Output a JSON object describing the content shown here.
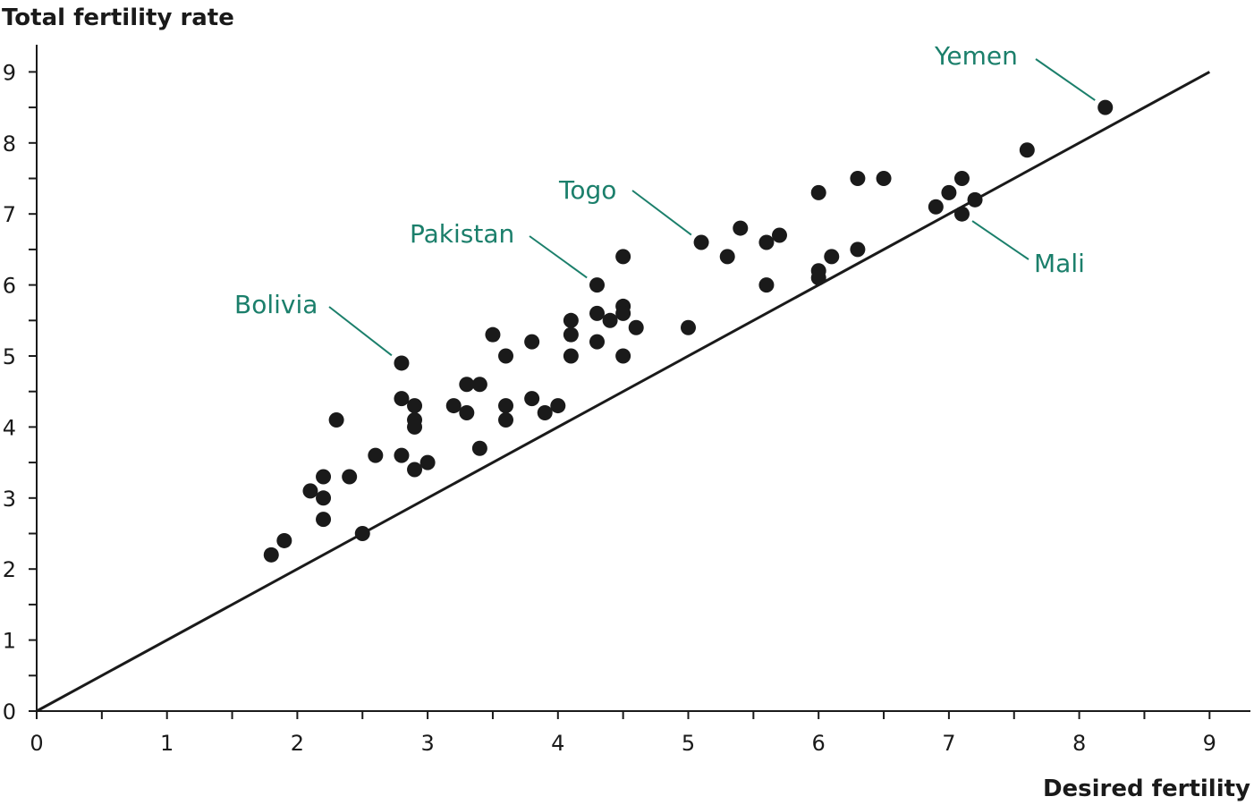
{
  "chart_data": {
    "type": "scatter",
    "ylabel": "Total fertility rate",
    "xlabel": "Desired fertility",
    "xlim": [
      0,
      9.3
    ],
    "ylim": [
      0,
      9.3
    ],
    "x_ticks": [
      0,
      1,
      2,
      3,
      4,
      5,
      6,
      7,
      8,
      9
    ],
    "y_ticks": [
      0,
      1,
      2,
      3,
      4,
      5,
      6,
      7,
      8,
      9
    ],
    "grid": false,
    "reference_line": {
      "from": [
        0,
        0
      ],
      "to": [
        9,
        9
      ]
    },
    "label_color": "#1b7f6b",
    "mark_color": "#1a1a1a",
    "points": [
      {
        "x": 1.8,
        "y": 2.2
      },
      {
        "x": 1.9,
        "y": 2.4
      },
      {
        "x": 2.1,
        "y": 3.1
      },
      {
        "x": 2.2,
        "y": 3.3
      },
      {
        "x": 2.2,
        "y": 3.0
      },
      {
        "x": 2.2,
        "y": 2.7
      },
      {
        "x": 2.3,
        "y": 4.1
      },
      {
        "x": 2.4,
        "y": 3.3
      },
      {
        "x": 2.5,
        "y": 2.5
      },
      {
        "x": 2.6,
        "y": 3.6
      },
      {
        "x": 2.8,
        "y": 4.9
      },
      {
        "x": 2.8,
        "y": 4.4
      },
      {
        "x": 2.8,
        "y": 3.6
      },
      {
        "x": 2.9,
        "y": 4.3
      },
      {
        "x": 2.9,
        "y": 4.1
      },
      {
        "x": 2.9,
        "y": 4.0
      },
      {
        "x": 2.9,
        "y": 3.4
      },
      {
        "x": 3.0,
        "y": 3.5
      },
      {
        "x": 3.2,
        "y": 4.3
      },
      {
        "x": 3.3,
        "y": 4.6
      },
      {
        "x": 3.3,
        "y": 4.2
      },
      {
        "x": 3.4,
        "y": 4.6
      },
      {
        "x": 3.4,
        "y": 3.7
      },
      {
        "x": 3.5,
        "y": 5.3
      },
      {
        "x": 3.6,
        "y": 5.0
      },
      {
        "x": 3.6,
        "y": 4.3
      },
      {
        "x": 3.6,
        "y": 4.1
      },
      {
        "x": 3.8,
        "y": 5.2
      },
      {
        "x": 3.8,
        "y": 4.4
      },
      {
        "x": 3.9,
        "y": 4.2
      },
      {
        "x": 4.0,
        "y": 4.3
      },
      {
        "x": 4.1,
        "y": 5.5
      },
      {
        "x": 4.1,
        "y": 5.3
      },
      {
        "x": 4.1,
        "y": 5.0
      },
      {
        "x": 4.3,
        "y": 6.0
      },
      {
        "x": 4.3,
        "y": 5.6
      },
      {
        "x": 4.3,
        "y": 5.2
      },
      {
        "x": 4.4,
        "y": 5.5
      },
      {
        "x": 4.5,
        "y": 6.4
      },
      {
        "x": 4.5,
        "y": 5.7
      },
      {
        "x": 4.5,
        "y": 5.6
      },
      {
        "x": 4.5,
        "y": 5.0
      },
      {
        "x": 4.6,
        "y": 5.4
      },
      {
        "x": 5.0,
        "y": 5.4
      },
      {
        "x": 5.1,
        "y": 6.6
      },
      {
        "x": 5.3,
        "y": 6.4
      },
      {
        "x": 5.4,
        "y": 6.8
      },
      {
        "x": 5.6,
        "y": 6.6
      },
      {
        "x": 5.6,
        "y": 6.0
      },
      {
        "x": 5.7,
        "y": 6.7
      },
      {
        "x": 6.0,
        "y": 7.3
      },
      {
        "x": 6.0,
        "y": 6.2
      },
      {
        "x": 6.0,
        "y": 6.1
      },
      {
        "x": 6.1,
        "y": 6.4
      },
      {
        "x": 6.3,
        "y": 7.5
      },
      {
        "x": 6.3,
        "y": 6.5
      },
      {
        "x": 6.5,
        "y": 7.5
      },
      {
        "x": 6.9,
        "y": 7.1
      },
      {
        "x": 7.0,
        "y": 7.3
      },
      {
        "x": 7.1,
        "y": 7.5
      },
      {
        "x": 7.1,
        "y": 7.0
      },
      {
        "x": 7.2,
        "y": 7.2
      },
      {
        "x": 7.6,
        "y": 7.9
      },
      {
        "x": 8.2,
        "y": 8.5
      }
    ],
    "annotations": [
      {
        "text": "Yemen",
        "x": 8.2,
        "y": 8.5
      },
      {
        "text": "Togo",
        "x": 5.1,
        "y": 6.6
      },
      {
        "text": "Pakistan",
        "x": 4.3,
        "y": 6.0
      },
      {
        "text": "Bolivia",
        "x": 2.8,
        "y": 4.9
      },
      {
        "text": "Mali",
        "x": 7.1,
        "y": 7.0
      }
    ]
  }
}
